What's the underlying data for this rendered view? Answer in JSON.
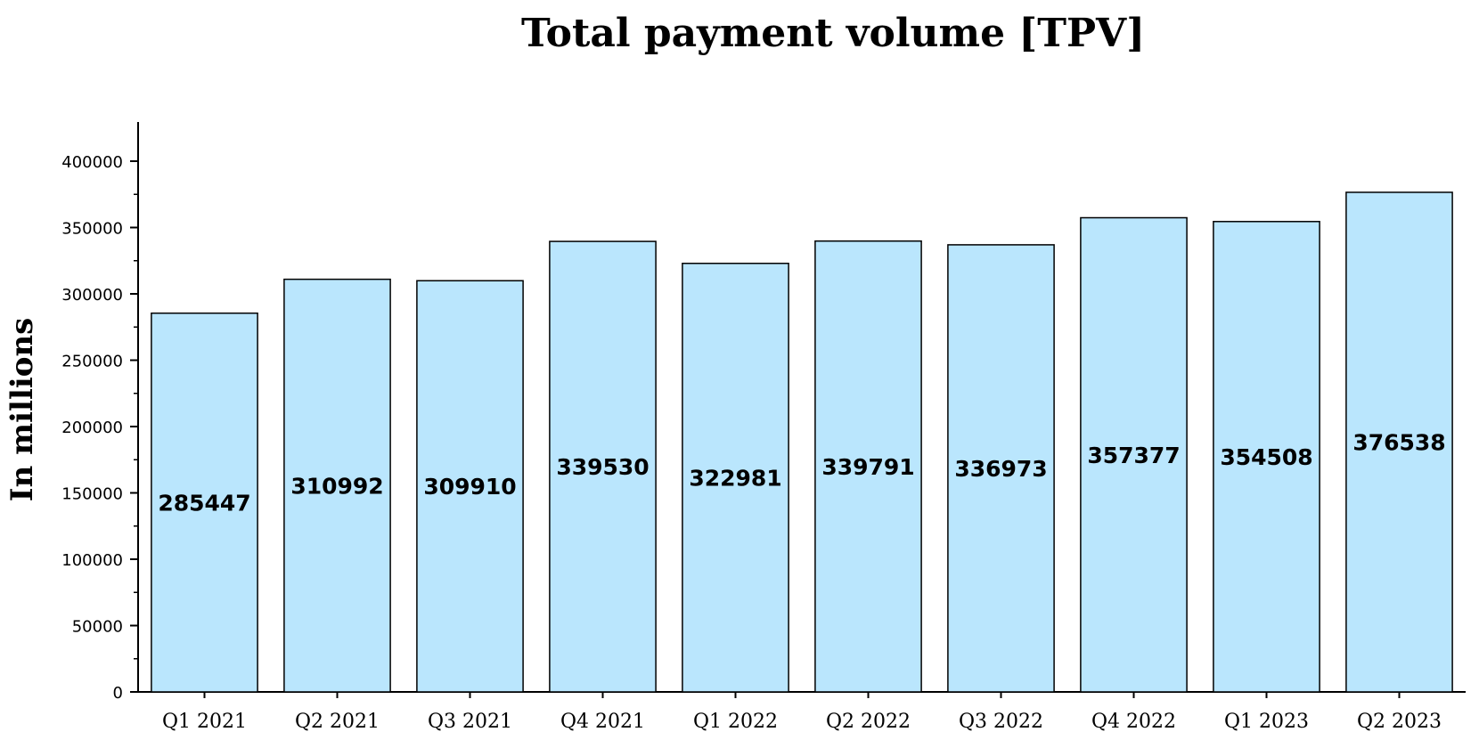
{
  "chart_data": {
    "type": "bar",
    "title": "Total payment volume [TPV]",
    "xlabel": "",
    "ylabel": "In millions",
    "categories": [
      "Q1 2021",
      "Q2 2021",
      "Q3 2021",
      "Q4 2021",
      "Q1 2022",
      "Q2 2022",
      "Q3 2022",
      "Q4 2022",
      "Q1 2023",
      "Q2 2023"
    ],
    "values": [
      285447,
      310992,
      309910,
      339530,
      322981,
      339791,
      336973,
      357377,
      354508,
      376538
    ],
    "ylim": [
      0,
      425000
    ],
    "yticks": [
      0,
      50000,
      100000,
      150000,
      200000,
      250000,
      300000,
      350000,
      400000
    ],
    "grid": false,
    "legend": "none",
    "colors": {
      "bar_fill": "#bae6fd",
      "bar_stroke": "#000000",
      "axis": "#000000"
    }
  }
}
